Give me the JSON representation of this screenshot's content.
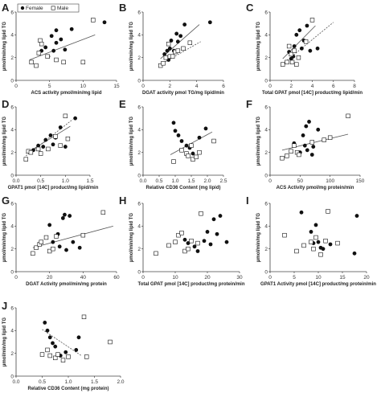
{
  "colors": {
    "female": "#111111",
    "male": "#ffffff",
    "stroke": "#111111",
    "fitline": "#555555"
  },
  "legend": {
    "female": "Female",
    "male": "Male"
  },
  "chart_data": [
    {
      "panel": "A",
      "type": "scatter",
      "xlabel": "ACS activity pmol/min/mg lipid",
      "ylabel": "µmol/min/mg lipid TG",
      "xlim": [
        0,
        15
      ],
      "ylim": [
        0,
        6
      ],
      "xticks": [
        "0",
        "5",
        "10",
        "15"
      ],
      "yticks": [
        "0",
        "2",
        "4",
        "6"
      ],
      "show_legend": true,
      "series": [
        {
          "name": "Female",
          "x": [
            3.8,
            4.4,
            4.8,
            5.3,
            5.6,
            6.0,
            6.0,
            6.7,
            7.3,
            8.3,
            13.2
          ],
          "y": [
            2.6,
            2.9,
            2.1,
            3.9,
            2.6,
            4.4,
            3.3,
            3.6,
            2.7,
            4.5,
            5.1
          ]
        },
        {
          "name": "Male",
          "x": [
            2.3,
            3.0,
            3.4,
            3.6,
            3.8,
            4.7,
            6.0,
            7.1,
            10.0,
            11.5
          ],
          "y": [
            1.6,
            1.3,
            2.4,
            3.5,
            3.2,
            2.1,
            1.8,
            1.6,
            1.6,
            5.3
          ]
        }
      ],
      "fits": [
        {
          "x": [
            2,
            11.8
          ],
          "y": [
            1.8,
            4.0
          ],
          "dashed": false
        }
      ]
    },
    {
      "panel": "B",
      "type": "scatter",
      "xlabel": "DGAT activity pmol TG/mg lipid/min",
      "ylabel": "µmol/min/mg lipid TG",
      "xlim": [
        0,
        6
      ],
      "ylim": [
        0,
        6
      ],
      "xticks": [
        "0",
        "2",
        "4",
        "6"
      ],
      "yticks": [
        "0",
        "2",
        "4",
        "6"
      ],
      "show_legend": false,
      "series": [
        {
          "name": "Female",
          "x": [
            1.6,
            1.8,
            1.9,
            2.0,
            2.1,
            2.3,
            2.5,
            2.6,
            2.8,
            3.1,
            5.0
          ],
          "y": [
            2.3,
            2.6,
            1.8,
            2.8,
            3.5,
            2.6,
            4.1,
            3.4,
            3.9,
            4.9,
            5.1
          ]
        },
        {
          "name": "Male",
          "x": [
            1.3,
            1.5,
            1.7,
            1.9,
            2.0,
            2.2,
            2.4,
            2.6,
            3.0,
            3.5
          ],
          "y": [
            1.3,
            1.5,
            2.0,
            3.2,
            2.1,
            2.1,
            2.5,
            2.6,
            2.8,
            3.3
          ]
        }
      ],
      "fits": [
        {
          "x": [
            1.3,
            4.2
          ],
          "y": [
            1.9,
            4.9
          ],
          "dashed": false
        },
        {
          "x": [
            1.3,
            4.3
          ],
          "y": [
            1.4,
            3.4
          ],
          "dashed": true
        }
      ]
    },
    {
      "panel": "C",
      "type": "scatter",
      "xlabel": "Total GPAT pmol [14C] product/mg lipid/min",
      "ylabel": "µmol/min/mg lipid TG",
      "xlim": [
        0,
        8
      ],
      "ylim": [
        0,
        6
      ],
      "xticks": [
        "0",
        "2",
        "4",
        "6",
        "8"
      ],
      "yticks": [
        "0",
        "2",
        "4",
        "6"
      ],
      "show_legend": false,
      "series": [
        {
          "name": "Female",
          "x": [
            1.8,
            2.0,
            2.2,
            2.3,
            2.5,
            2.8,
            3.0,
            3.2,
            3.5,
            3.8,
            4.5
          ],
          "y": [
            2.5,
            1.9,
            2.1,
            3.0,
            4.0,
            4.4,
            2.8,
            3.5,
            4.8,
            2.6,
            2.8
          ]
        },
        {
          "name": "Male",
          "x": [
            1.2,
            1.6,
            1.8,
            2.0,
            2.1,
            2.3,
            2.5,
            2.7,
            3.4,
            4.0
          ],
          "y": [
            1.4,
            1.6,
            3.0,
            2.3,
            1.6,
            2.6,
            1.4,
            2.0,
            3.4,
            5.3
          ]
        }
      ],
      "fits": [
        {
          "x": [
            1.2,
            4.3
          ],
          "y": [
            1.9,
            4.8
          ],
          "dashed": false
        },
        {
          "x": [
            1.4,
            6.0
          ],
          "y": [
            1.6,
            5.1
          ],
          "dashed": true
        }
      ]
    },
    {
      "panel": "D",
      "type": "scatter",
      "xlabel": "GPAT1 pmol [14C] product/mg lipid/min",
      "ylabel": "µmol/min/mg lipid TG",
      "xlim": [
        0,
        1.5
      ],
      "ylim": [
        0,
        6
      ],
      "xticks": [
        "0.0",
        "0.5",
        "1.0",
        "1.5"
      ],
      "yticks": [
        "0",
        "2",
        "4",
        "6"
      ],
      "show_legend": false,
      "series": [
        {
          "name": "Female",
          "x": [
            0.35,
            0.45,
            0.55,
            0.6,
            0.7,
            0.75,
            0.8,
            0.9,
            1.0,
            1.2
          ],
          "y": [
            2.2,
            2.6,
            2.5,
            3.1,
            3.5,
            2.7,
            3.3,
            4.2,
            2.5,
            5.0
          ]
        },
        {
          "name": "Male",
          "x": [
            0.2,
            0.25,
            0.3,
            0.45,
            0.5,
            0.65,
            0.8,
            0.9,
            1.0,
            1.05
          ],
          "y": [
            1.4,
            2.1,
            2.0,
            2.3,
            1.9,
            2.3,
            3.4,
            2.6,
            5.2,
            3.2
          ]
        }
      ],
      "fits": [
        {
          "x": [
            0.2,
            1.1
          ],
          "y": [
            1.9,
            4.3
          ],
          "dashed": false
        },
        {
          "x": [
            0.2,
            1.15
          ],
          "y": [
            1.7,
            4.9
          ],
          "dashed": true
        }
      ]
    },
    {
      "panel": "E",
      "type": "scatter",
      "xlabel": "Relative CD36 Content (mg lipid)",
      "ylabel": "µmol/min/mg lipid TG",
      "xlim": [
        0,
        2.5
      ],
      "ylim": [
        0,
        6
      ],
      "xticks": [
        "0.0",
        "0.5",
        "1.0",
        "1.5",
        "2.0",
        "2.5"
      ],
      "yticks": [
        "0",
        "2",
        "4",
        "6"
      ],
      "show_legend": false,
      "series": [
        {
          "name": "Female",
          "x": [
            0.95,
            1.0,
            1.1,
            1.2,
            1.35,
            1.45,
            1.55,
            1.75,
            1.95
          ],
          "y": [
            4.6,
            3.9,
            3.5,
            3.0,
            2.6,
            2.4,
            1.9,
            3.3,
            4.1
          ]
        },
        {
          "name": "Male",
          "x": [
            0.95,
            1.2,
            1.35,
            1.4,
            1.5,
            1.55,
            1.65,
            1.75,
            2.2
          ],
          "y": [
            1.2,
            2.2,
            1.9,
            1.7,
            2.6,
            1.4,
            1.6,
            2.0,
            3.0
          ]
        }
      ],
      "fits": [
        {
          "x": [
            0.85,
            2.15
          ],
          "y": [
            1.8,
            3.8
          ],
          "dashed": false
        }
      ]
    },
    {
      "panel": "F",
      "type": "scatter",
      "xlabel": "ACS Activity pmol/mg protein/min",
      "ylabel": "µmol/min/mg lipid TG",
      "xlim": [
        0,
        150
      ],
      "ylim": [
        0,
        6
      ],
      "xticks": [
        "0",
        "50",
        "100",
        "150"
      ],
      "yticks": [
        "0",
        "2",
        "4",
        "6"
      ],
      "show_legend": false,
      "series": [
        {
          "name": "Female",
          "x": [
            40,
            50,
            55,
            58,
            60,
            62,
            65,
            70,
            72,
            80
          ],
          "y": [
            2.8,
            2.0,
            3.5,
            2.6,
            4.3,
            2.2,
            4.7,
            1.8,
            2.5,
            4.0
          ]
        },
        {
          "name": "Male",
          "x": [
            20,
            28,
            35,
            40,
            45,
            48,
            70,
            90,
            100,
            130
          ],
          "y": [
            1.5,
            1.7,
            2.1,
            2.6,
            2.0,
            1.8,
            2.9,
            3.1,
            3.3,
            5.2
          ]
        }
      ],
      "fits": [
        {
          "x": [
            20,
            130
          ],
          "y": [
            2.2,
            3.6
          ],
          "dashed": false
        }
      ]
    },
    {
      "panel": "G",
      "type": "scatter",
      "xlabel": "DGAT Activity pmol/min/mg protein",
      "ylabel": "µmol/min/mg lipid TG",
      "xlim": [
        0,
        60
      ],
      "ylim": [
        0,
        6
      ],
      "xticks": [
        "0",
        "20",
        "40",
        "60"
      ],
      "yticks": [
        "0",
        "2",
        "4",
        "6"
      ],
      "show_legend": false,
      "series": [
        {
          "name": "Female",
          "x": [
            20,
            22,
            25,
            26,
            28,
            29,
            30,
            32,
            34,
            38
          ],
          "y": [
            4.1,
            2.6,
            3.3,
            2.2,
            4.7,
            5.0,
            1.9,
            4.9,
            2.6,
            2.1
          ]
        },
        {
          "name": "Male",
          "x": [
            10,
            12,
            14,
            15,
            18,
            20,
            22,
            24,
            40,
            52
          ],
          "y": [
            1.6,
            2.1,
            2.4,
            2.6,
            3.0,
            1.8,
            2.0,
            3.1,
            3.2,
            5.2
          ]
        }
      ],
      "fits": [
        {
          "x": [
            10,
            58
          ],
          "y": [
            2.1,
            4.0
          ],
          "dashed": false
        }
      ]
    },
    {
      "panel": "H",
      "type": "scatter",
      "xlabel": "Total GPAT pmol [14C] product/mg protein/min",
      "ylabel": "µmol/min/mg lipid TG",
      "xlim": [
        0,
        30
      ],
      "ylim": [
        0,
        6
      ],
      "xticks": [
        "0",
        "10",
        "20",
        "30"
      ],
      "yticks": [
        "0",
        "2",
        "4",
        "6"
      ],
      "show_legend": false,
      "series": [
        {
          "name": "Female",
          "x": [
            13,
            14,
            16,
            17,
            19,
            20,
            21,
            22,
            23,
            24,
            26
          ],
          "y": [
            2.8,
            2.5,
            2.2,
            1.8,
            2.7,
            3.5,
            2.4,
            4.6,
            3.3,
            4.9,
            2.6
          ]
        },
        {
          "name": "Male",
          "x": [
            4,
            8,
            10,
            11,
            12,
            13,
            14,
            15,
            17,
            18
          ],
          "y": [
            1.6,
            2.3,
            2.6,
            3.2,
            3.4,
            1.8,
            2.0,
            2.7,
            2.5,
            5.1
          ]
        }
      ],
      "fits": []
    },
    {
      "panel": "I",
      "type": "scatter",
      "xlabel": "GPAT1 Activity pmol [14C] product/mg protein/min",
      "ylabel": "µmol/min/mg lipid TG",
      "xlim": [
        0,
        20
      ],
      "ylim": [
        0,
        6
      ],
      "xticks": [
        "0",
        "5",
        "10",
        "15",
        "20"
      ],
      "yticks": [
        "0",
        "2",
        "4",
        "6"
      ],
      "show_legend": false,
      "series": [
        {
          "name": "Female",
          "x": [
            6.5,
            8.5,
            9.0,
            9.5,
            10.0,
            10.5,
            11.0,
            12.5,
            17.5,
            18.0
          ],
          "y": [
            5.2,
            3.5,
            2.5,
            4.1,
            2.6,
            2.1,
            2.0,
            2.4,
            1.6,
            4.9
          ]
        },
        {
          "name": "Male",
          "x": [
            3.0,
            5.5,
            7.0,
            8.5,
            9.0,
            9.5,
            10.5,
            11.5,
            12.0,
            14.0
          ],
          "y": [
            3.2,
            1.8,
            2.3,
            2.6,
            2.0,
            3.0,
            1.5,
            2.7,
            5.3,
            2.5
          ]
        }
      ],
      "fits": []
    },
    {
      "panel": "J",
      "type": "scatter",
      "xlabel": "Relative CD36 Content (mg protein)",
      "ylabel": "µmol/min/mg lipid TG",
      "xlim": [
        0,
        2
      ],
      "ylim": [
        0,
        6
      ],
      "xticks": [
        "0.0",
        "0.5",
        "1.0",
        "1.5",
        "2.0"
      ],
      "yticks": [
        "0",
        "2",
        "4",
        "6"
      ],
      "show_legend": false,
      "series": [
        {
          "name": "Female",
          "x": [
            0.55,
            0.6,
            0.65,
            0.7,
            0.75,
            0.85,
            0.95,
            1.15,
            1.2
          ],
          "y": [
            4.7,
            4.0,
            3.4,
            2.9,
            2.6,
            1.8,
            2.1,
            2.3,
            3.4
          ]
        },
        {
          "name": "Male",
          "x": [
            0.5,
            0.6,
            0.65,
            0.75,
            0.8,
            0.9,
            1.0,
            1.3,
            1.35,
            1.8
          ],
          "y": [
            1.9,
            2.3,
            1.8,
            1.6,
            1.9,
            1.4,
            1.7,
            5.2,
            1.7,
            3.0
          ]
        }
      ],
      "fits": [
        {
          "x": [
            0.5,
            1.25
          ],
          "y": [
            4.1,
            1.8
          ],
          "dashed": true
        }
      ]
    }
  ]
}
